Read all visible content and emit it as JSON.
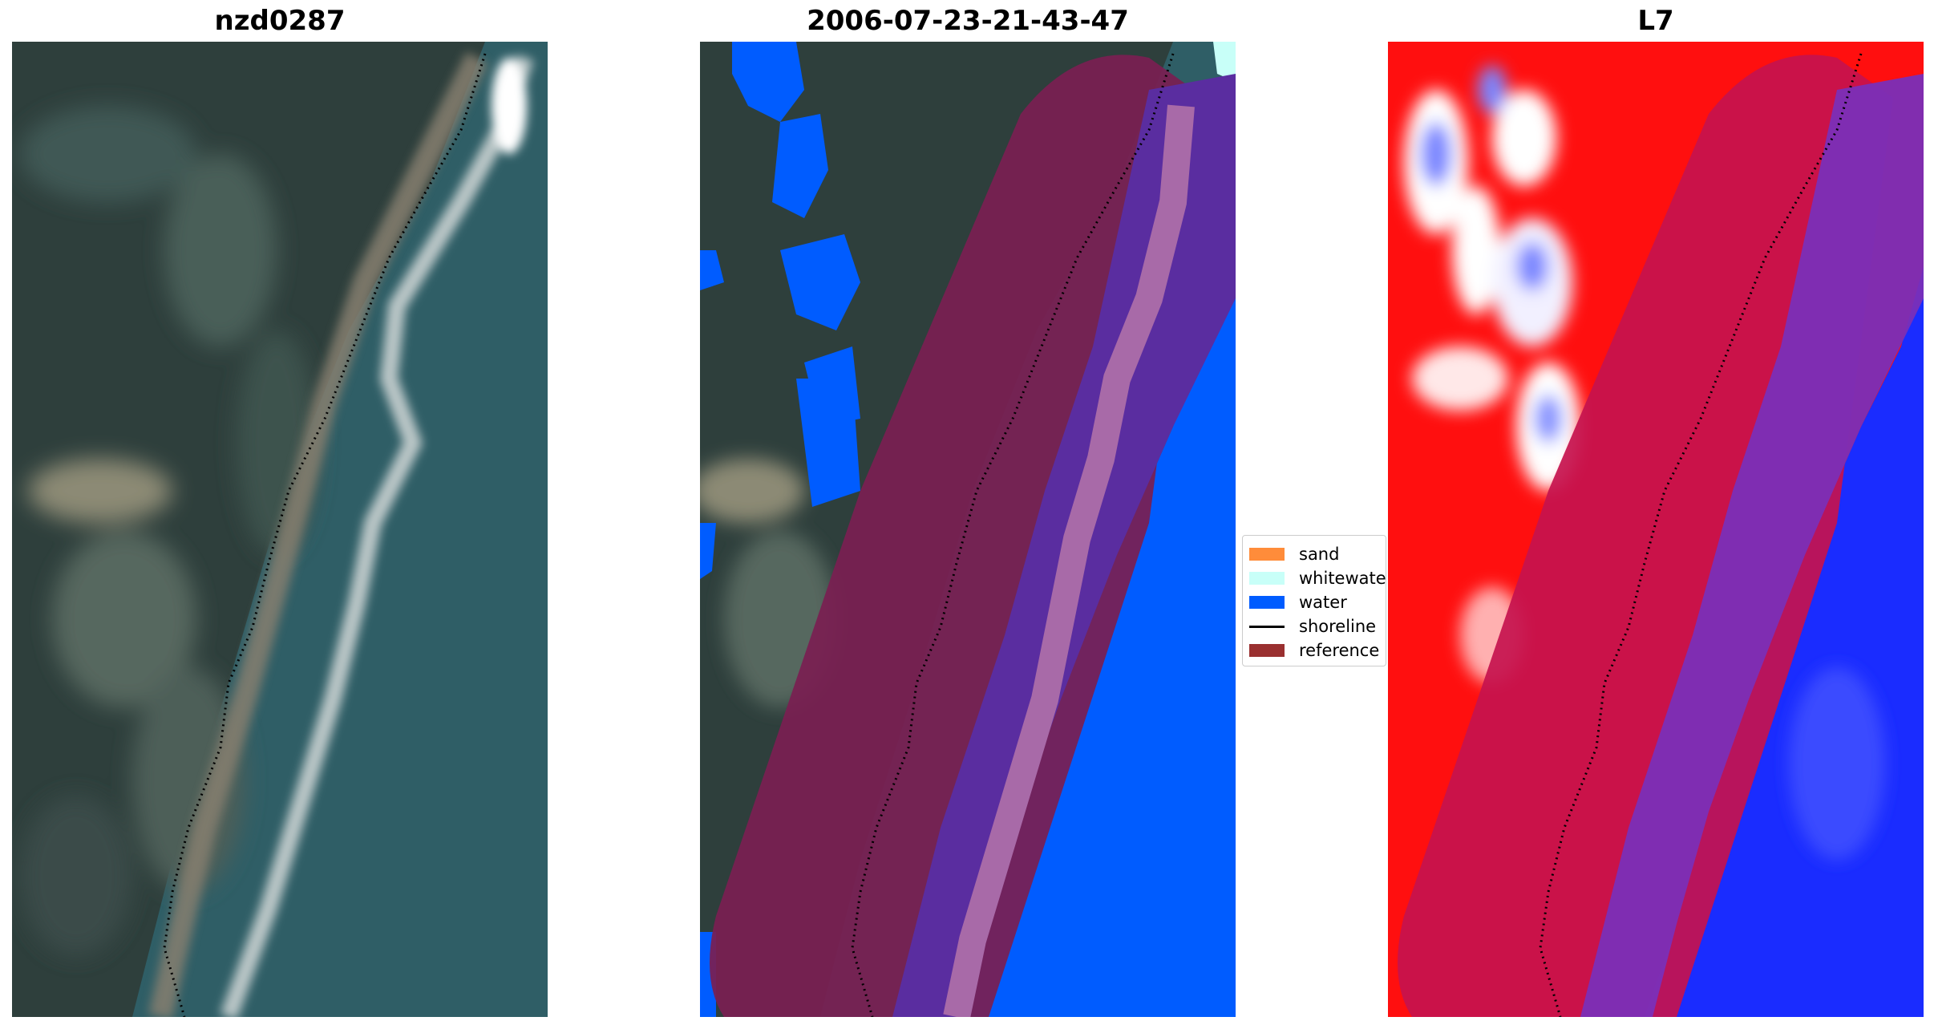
{
  "panels": {
    "left": {
      "title": "nzd0287"
    },
    "middle": {
      "title": "2006-07-23-21-43-47"
    },
    "right": {
      "title": "L7"
    }
  },
  "legend": {
    "items": [
      {
        "label": "sand",
        "color": "#ff8c3a",
        "kind": "patch"
      },
      {
        "label": "whitewater",
        "color": "#c8fff8",
        "kind": "patch"
      },
      {
        "label": "water",
        "color": "#005cff",
        "kind": "patch"
      },
      {
        "label": "shoreline",
        "color": "#000000",
        "kind": "line"
      },
      {
        "label": "reference s",
        "color": "#9a3030",
        "kind": "patch"
      }
    ]
  }
}
